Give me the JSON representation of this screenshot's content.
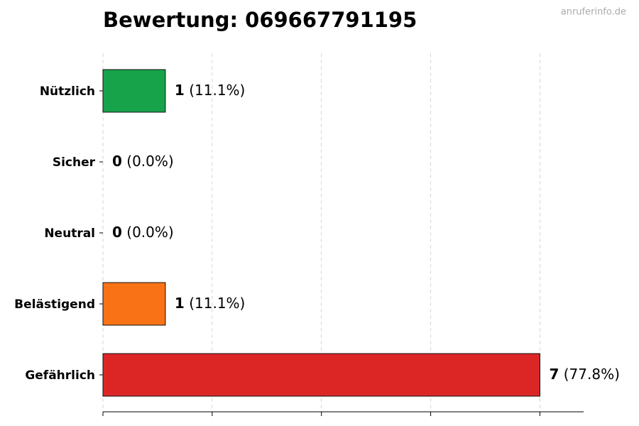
{
  "chart_data": {
    "type": "bar",
    "orientation": "horizontal",
    "title": "Bewertung: 069667791195",
    "watermark": "anruferinfo.de",
    "categories": [
      "Nützlich",
      "Sicher",
      "Neutral",
      "Belästigend",
      "Gefährlich"
    ],
    "values": [
      1,
      0,
      0,
      1,
      7
    ],
    "percent_labels": [
      "(11.1%)",
      "(0.0%)",
      "(0.0%)",
      "(11.1%)",
      "(77.8%)"
    ],
    "colors": [
      "#16a34a",
      "#dc2626",
      "#dc2626",
      "#f97316",
      "#dc2626"
    ],
    "xlim": [
      0,
      7.7
    ],
    "xticks": [
      0,
      1.75,
      3.5,
      5.25,
      7
    ],
    "grid": true
  }
}
